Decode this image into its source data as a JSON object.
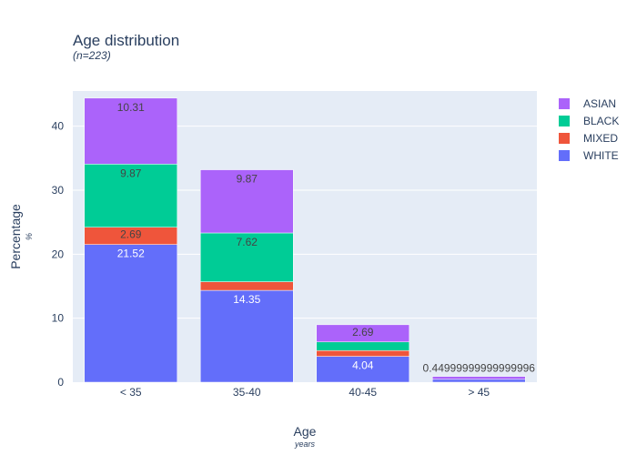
{
  "chart_data": {
    "type": "bar",
    "barmode": "stack",
    "title": "Age distribution",
    "subtitle": "(n=223)",
    "xlabel": "Age",
    "xlabel_sub": "years",
    "ylabel": "Percentage",
    "ylabel_sub": "%",
    "categories": [
      "< 35",
      "35-40",
      "40-45",
      "> 45"
    ],
    "ylim": [
      0,
      45.5
    ],
    "yticks": [
      0,
      10,
      20,
      30,
      40
    ],
    "grid": true,
    "legend_position": "top-right",
    "series": [
      {
        "name": "WHITE",
        "color": "#636efa",
        "values": [
          21.52,
          14.35,
          4.04,
          0.45
        ],
        "labels": [
          "21.52",
          "14.35",
          "4.04",
          ""
        ]
      },
      {
        "name": "MIXED",
        "color": "#ef553b",
        "values": [
          2.69,
          1.35,
          0.9,
          0.0
        ],
        "labels": [
          "2.69",
          "",
          "",
          ""
        ]
      },
      {
        "name": "BLACK",
        "color": "#00cc96",
        "values": [
          9.87,
          7.62,
          1.35,
          0.0
        ],
        "labels": [
          "9.87",
          "7.62",
          "",
          ""
        ]
      },
      {
        "name": "ASIAN",
        "color": "#ab63fa",
        "values": [
          10.31,
          9.87,
          2.69,
          0.45
        ],
        "labels": [
          "10.31",
          "9.87",
          "2.69",
          "0.44999999999999996"
        ]
      }
    ],
    "legend_order": [
      "ASIAN",
      "BLACK",
      "MIXED",
      "WHITE"
    ]
  }
}
